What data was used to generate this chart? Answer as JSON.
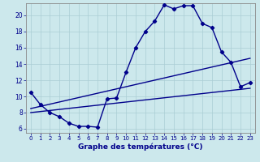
{
  "xlabel": "Graphe des températures (°C)",
  "background_color": "#cce8ec",
  "grid_color": "#aacdd4",
  "line_color": "#00008b",
  "xlim": [
    -0.5,
    23.5
  ],
  "ylim": [
    5.5,
    21.5
  ],
  "yticks": [
    6,
    8,
    10,
    12,
    14,
    16,
    18,
    20
  ],
  "xticks": [
    0,
    1,
    2,
    3,
    4,
    5,
    6,
    7,
    8,
    9,
    10,
    11,
    12,
    13,
    14,
    15,
    16,
    17,
    18,
    19,
    20,
    21,
    22,
    23
  ],
  "curve1_x": [
    0,
    1,
    2,
    3,
    4,
    5,
    6,
    7,
    8,
    9,
    10,
    11,
    12,
    13,
    14,
    15,
    16,
    17,
    18,
    19,
    20,
    21,
    22,
    23
  ],
  "curve1_y": [
    10.5,
    9.0,
    8.0,
    7.5,
    6.7,
    6.3,
    6.3,
    6.2,
    9.7,
    9.8,
    13.0,
    16.0,
    18.0,
    19.3,
    21.3,
    20.8,
    21.2,
    21.2,
    19.0,
    18.5,
    15.5,
    14.2,
    11.2,
    11.7
  ],
  "curve2_x": [
    0,
    23
  ],
  "curve2_y": [
    8.0,
    11.0
  ],
  "curve3_x": [
    0,
    23
  ],
  "curve3_y": [
    8.5,
    14.7
  ],
  "marker_size": 2.2,
  "line_width": 1.0,
  "xlabel_fontsize": 6.5,
  "tick_fontsize": 5.5,
  "xtick_fontsize": 5.0
}
